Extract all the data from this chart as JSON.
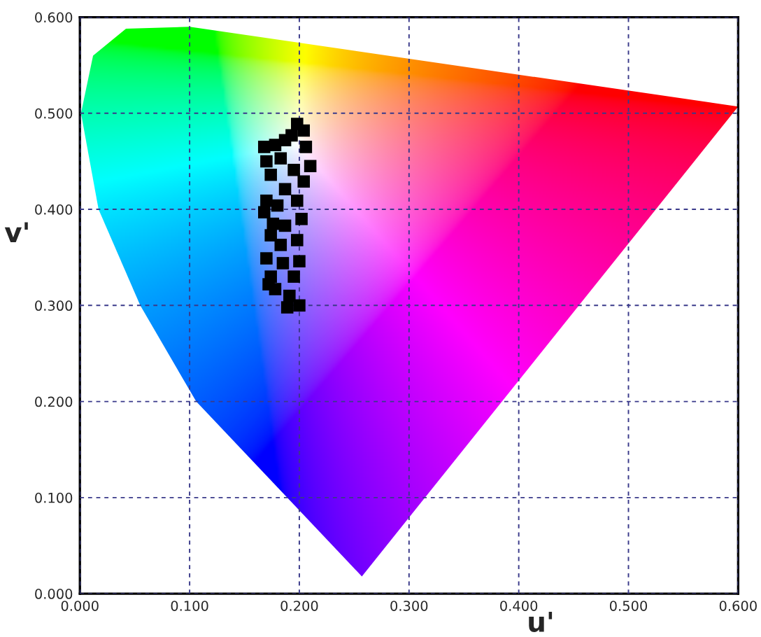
{
  "chart_data": {
    "type": "scatter",
    "xlabel": "u'",
    "ylabel": "v'",
    "x": [
      0.198,
      0.193,
      0.204,
      0.187,
      0.168,
      0.178,
      0.206,
      0.17,
      0.183,
      0.21,
      0.195,
      0.174,
      0.204,
      0.187,
      0.17,
      0.18,
      0.198,
      0.168,
      0.176,
      0.202,
      0.187,
      0.174,
      0.198,
      0.183,
      0.17,
      0.2,
      0.185,
      0.174,
      0.195,
      0.178,
      0.191,
      0.2,
      0.189,
      0.172
    ],
    "values": [
      0.489,
      0.477,
      0.482,
      0.472,
      0.465,
      0.467,
      0.465,
      0.45,
      0.453,
      0.445,
      0.441,
      0.436,
      0.429,
      0.421,
      0.409,
      0.404,
      0.409,
      0.397,
      0.385,
      0.39,
      0.383,
      0.373,
      0.368,
      0.363,
      0.349,
      0.346,
      0.344,
      0.33,
      0.33,
      0.317,
      0.31,
      0.3,
      0.298,
      0.322
    ],
    "color": "#000000",
    "marker": "square",
    "grid": true,
    "xlim": [
      0,
      0.6
    ],
    "ylim": [
      0,
      0.6
    ],
    "xticks": [
      {
        "value": 0,
        "label": "0.000"
      },
      {
        "value": 0.1,
        "label": "0.100"
      },
      {
        "value": 0.2,
        "label": "0.200"
      },
      {
        "value": 0.3,
        "label": "0.300"
      },
      {
        "value": 0.4,
        "label": "0.400"
      },
      {
        "value": 0.5,
        "label": "0.500"
      },
      {
        "value": 0.6,
        "label": "0.600"
      }
    ],
    "yticks": [
      {
        "value": 0,
        "label": "0.000"
      },
      {
        "value": 0.1,
        "label": "0.100"
      },
      {
        "value": 0.2,
        "label": "0.200"
      },
      {
        "value": 0.3,
        "label": "0.300"
      },
      {
        "value": 0.4,
        "label": "0.400"
      },
      {
        "value": 0.5,
        "label": "0.500"
      },
      {
        "value": 0.6,
        "label": "0.600"
      }
    ]
  }
}
